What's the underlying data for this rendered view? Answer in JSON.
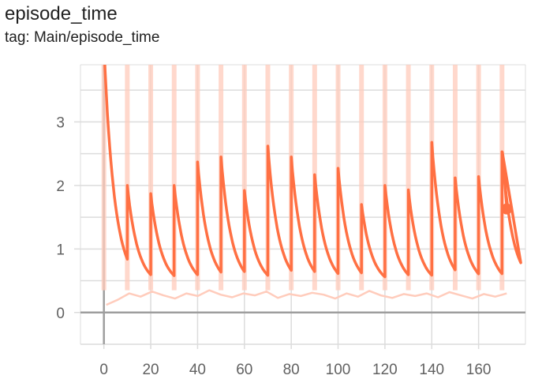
{
  "title": "episode_time",
  "tag_label": "tag: Main/episode_time",
  "chart_data": {
    "type": "line",
    "title": "episode_time",
    "subtitle": "tag: Main/episode_time",
    "xlim": [
      -10,
      180
    ],
    "ylim": [
      -0.5,
      3.9
    ],
    "x_ticks": [
      "0",
      "20",
      "40",
      "60",
      "80",
      "100",
      "120",
      "140",
      "160"
    ],
    "x_tick_values": [
      0,
      20,
      40,
      60,
      80,
      100,
      120,
      140,
      160
    ],
    "y_ticks": [
      "0",
      "1",
      "2",
      "3"
    ],
    "y_tick_values": [
      0,
      1,
      2,
      3
    ],
    "grid": true,
    "colors": {
      "smoothed": "#ff7043",
      "raw": "#ffccbc",
      "zero_axis": "#9e9e9e",
      "grid": "#dcdcdc"
    },
    "smoothed_series": {
      "cycle_peaks": [
        {
          "x": 0,
          "y": 4.2
        },
        {
          "x": 10,
          "y": 2.0
        },
        {
          "x": 20,
          "y": 1.87
        },
        {
          "x": 30,
          "y": 2.0
        },
        {
          "x": 40,
          "y": 2.37
        },
        {
          "x": 50,
          "y": 2.45
        },
        {
          "x": 60,
          "y": 1.92
        },
        {
          "x": 70,
          "y": 2.62
        },
        {
          "x": 80,
          "y": 2.45
        },
        {
          "x": 90,
          "y": 2.17
        },
        {
          "x": 100,
          "y": 2.27
        },
        {
          "x": 110,
          "y": 1.7
        },
        {
          "x": 120,
          "y": 2.0
        },
        {
          "x": 130,
          "y": 1.93
        },
        {
          "x": 140,
          "y": 2.68
        },
        {
          "x": 150,
          "y": 2.12
        },
        {
          "x": 160,
          "y": 2.14
        },
        {
          "x": 170,
          "y": 2.53
        }
      ],
      "cycle_trough": 0.42,
      "decay_per_step": 0.22,
      "last_point": {
        "x": 172,
        "y": 1.63
      }
    },
    "raw_series": {
      "spike_x": [
        0,
        10,
        20,
        30,
        40,
        50,
        60,
        70,
        80,
        90,
        100,
        110,
        120,
        130,
        140,
        150,
        160,
        170
      ],
      "spike_y": 4.2,
      "baseline": [
        0.12,
        0.2,
        0.3,
        0.25,
        0.33,
        0.27,
        0.22,
        0.3,
        0.26,
        0.35,
        0.28,
        0.24,
        0.3,
        0.27,
        0.33,
        0.23,
        0.29,
        0.26,
        0.31,
        0.28,
        0.22,
        0.3,
        0.25,
        0.34,
        0.27,
        0.23,
        0.29,
        0.26,
        0.3,
        0.24,
        0.32,
        0.27,
        0.22,
        0.29,
        0.25,
        0.3
      ]
    }
  }
}
